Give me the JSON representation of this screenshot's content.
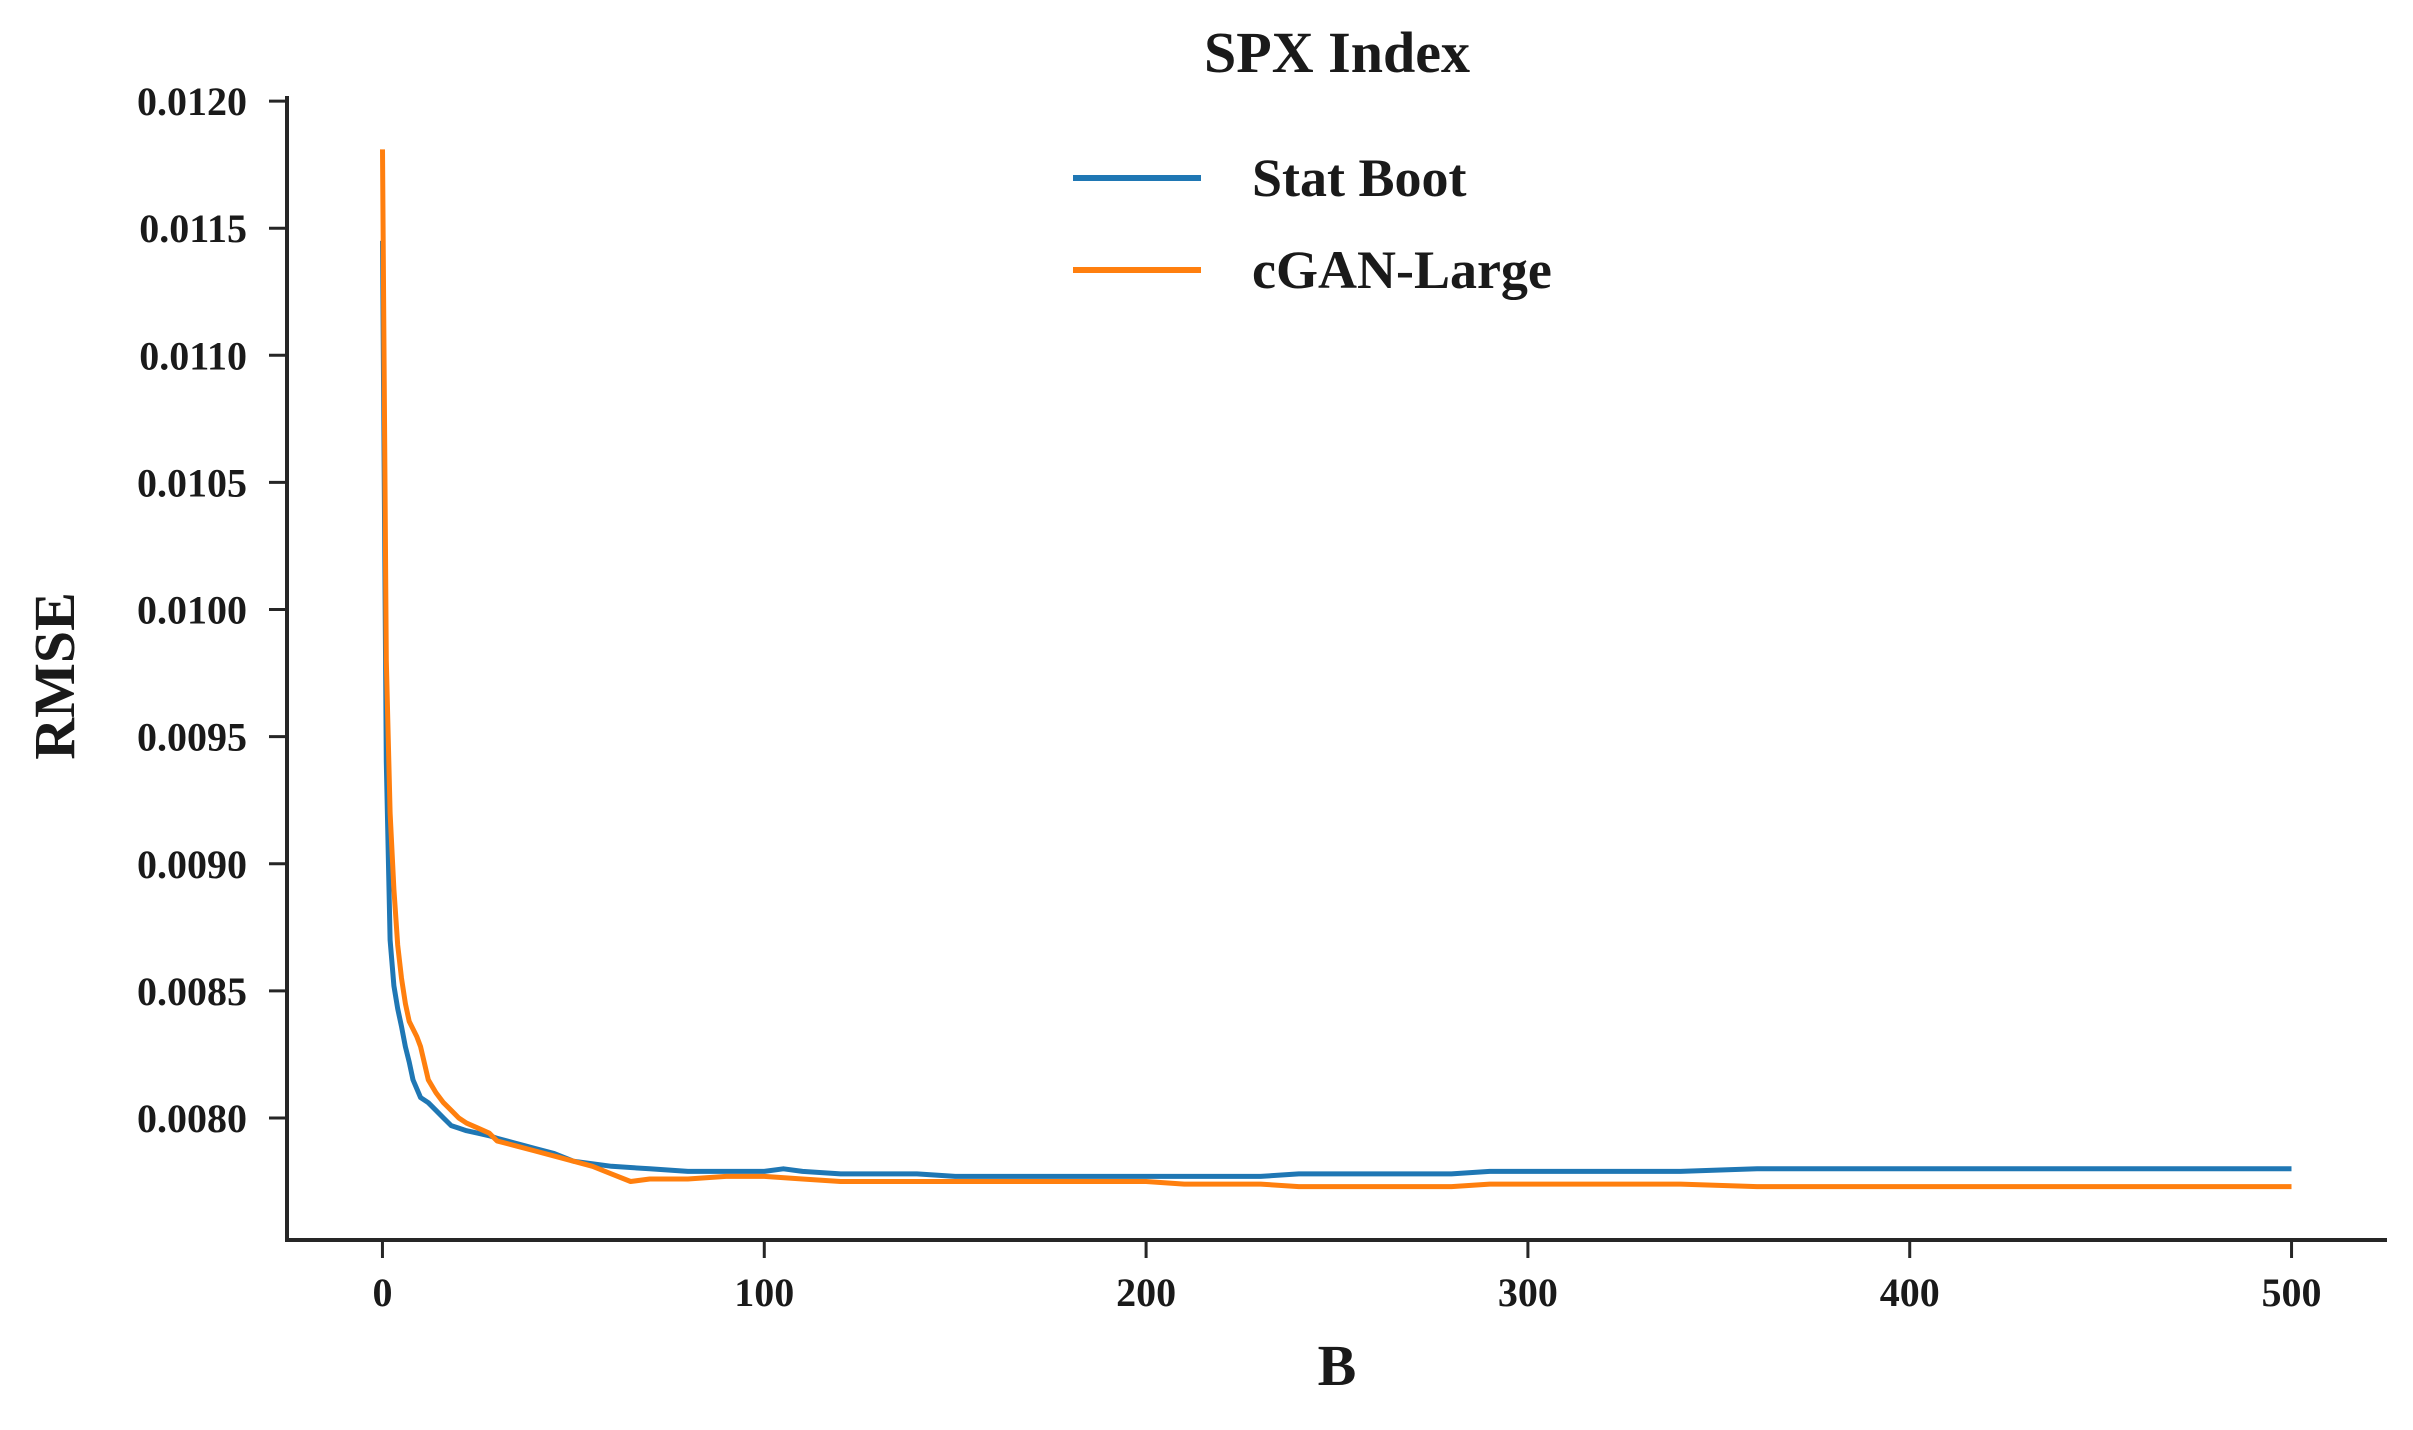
{
  "chart_data": {
    "type": "line",
    "title": "SPX Index",
    "xlabel": "B",
    "ylabel": "RMSE",
    "xlim": [
      -25,
      525
    ],
    "ylim": [
      0.00752,
      0.01202
    ],
    "x_ticks": [
      0,
      100,
      200,
      300,
      400,
      500
    ],
    "x_tick_labels": [
      "0",
      "100",
      "200",
      "300",
      "400",
      "500"
    ],
    "y_ticks": [
      0.008,
      0.0085,
      0.009,
      0.0095,
      0.01,
      0.0105,
      0.011,
      0.0115,
      0.012
    ],
    "y_tick_labels": [
      "0.0080",
      "0.0085",
      "0.0090",
      "0.0095",
      "0.0100",
      "0.0105",
      "0.0110",
      "0.0115",
      "0.0120"
    ],
    "grid": false,
    "legend_position": "top-center",
    "series": [
      {
        "name": "Stat Boot",
        "color": "#1f77b4",
        "x": [
          0,
          1,
          2,
          3,
          4,
          5,
          6,
          7,
          8,
          10,
          12,
          14,
          16,
          18,
          20,
          22,
          25,
          28,
          30,
          35,
          40,
          45,
          50,
          60,
          70,
          80,
          90,
          100,
          105,
          110,
          120,
          130,
          140,
          150,
          160,
          170,
          180,
          190,
          200,
          210,
          220,
          230,
          240,
          250,
          260,
          270,
          280,
          290,
          300,
          320,
          340,
          360,
          380,
          400,
          420,
          440,
          460,
          480,
          500
        ],
        "y": [
          0.01145,
          0.0094,
          0.0087,
          0.00852,
          0.00843,
          0.00836,
          0.00828,
          0.00822,
          0.00815,
          0.00808,
          0.00806,
          0.00803,
          0.008,
          0.00797,
          0.00796,
          0.00795,
          0.00794,
          0.00793,
          0.00792,
          0.0079,
          0.00788,
          0.00786,
          0.00783,
          0.00781,
          0.0078,
          0.00779,
          0.00779,
          0.00779,
          0.0078,
          0.00779,
          0.00778,
          0.00778,
          0.00778,
          0.00777,
          0.00777,
          0.00777,
          0.00777,
          0.00777,
          0.00777,
          0.00777,
          0.00777,
          0.00777,
          0.00778,
          0.00778,
          0.00778,
          0.00778,
          0.00778,
          0.00779,
          0.00779,
          0.00779,
          0.00779,
          0.0078,
          0.0078,
          0.0078,
          0.0078,
          0.0078,
          0.0078,
          0.0078,
          0.0078
        ]
      },
      {
        "name": "cGAN-Large",
        "color": "#ff7f0e",
        "x": [
          0,
          1,
          2,
          3,
          4,
          5,
          6,
          7,
          8,
          9,
          10,
          12,
          14,
          16,
          18,
          20,
          22,
          25,
          28,
          30,
          35,
          40,
          45,
          50,
          55,
          60,
          65,
          70,
          80,
          90,
          100,
          110,
          120,
          130,
          140,
          150,
          160,
          170,
          180,
          190,
          200,
          210,
          220,
          230,
          240,
          250,
          260,
          270,
          280,
          290,
          300,
          320,
          340,
          360,
          380,
          400,
          420,
          440,
          460,
          480,
          500
        ],
        "y": [
          0.01181,
          0.0098,
          0.0092,
          0.0089,
          0.00868,
          0.00855,
          0.00845,
          0.00838,
          0.00835,
          0.00832,
          0.00828,
          0.00815,
          0.0081,
          0.00806,
          0.00803,
          0.008,
          0.00798,
          0.00796,
          0.00794,
          0.00791,
          0.00789,
          0.00787,
          0.00785,
          0.00783,
          0.00781,
          0.00778,
          0.00775,
          0.00776,
          0.00776,
          0.00777,
          0.00777,
          0.00776,
          0.00775,
          0.00775,
          0.00775,
          0.00775,
          0.00775,
          0.00775,
          0.00775,
          0.00775,
          0.00775,
          0.00774,
          0.00774,
          0.00774,
          0.00773,
          0.00773,
          0.00773,
          0.00773,
          0.00773,
          0.00774,
          0.00774,
          0.00774,
          0.00774,
          0.00773,
          0.00773,
          0.00773,
          0.00773,
          0.00773,
          0.00773,
          0.00773,
          0.00773
        ]
      }
    ]
  }
}
